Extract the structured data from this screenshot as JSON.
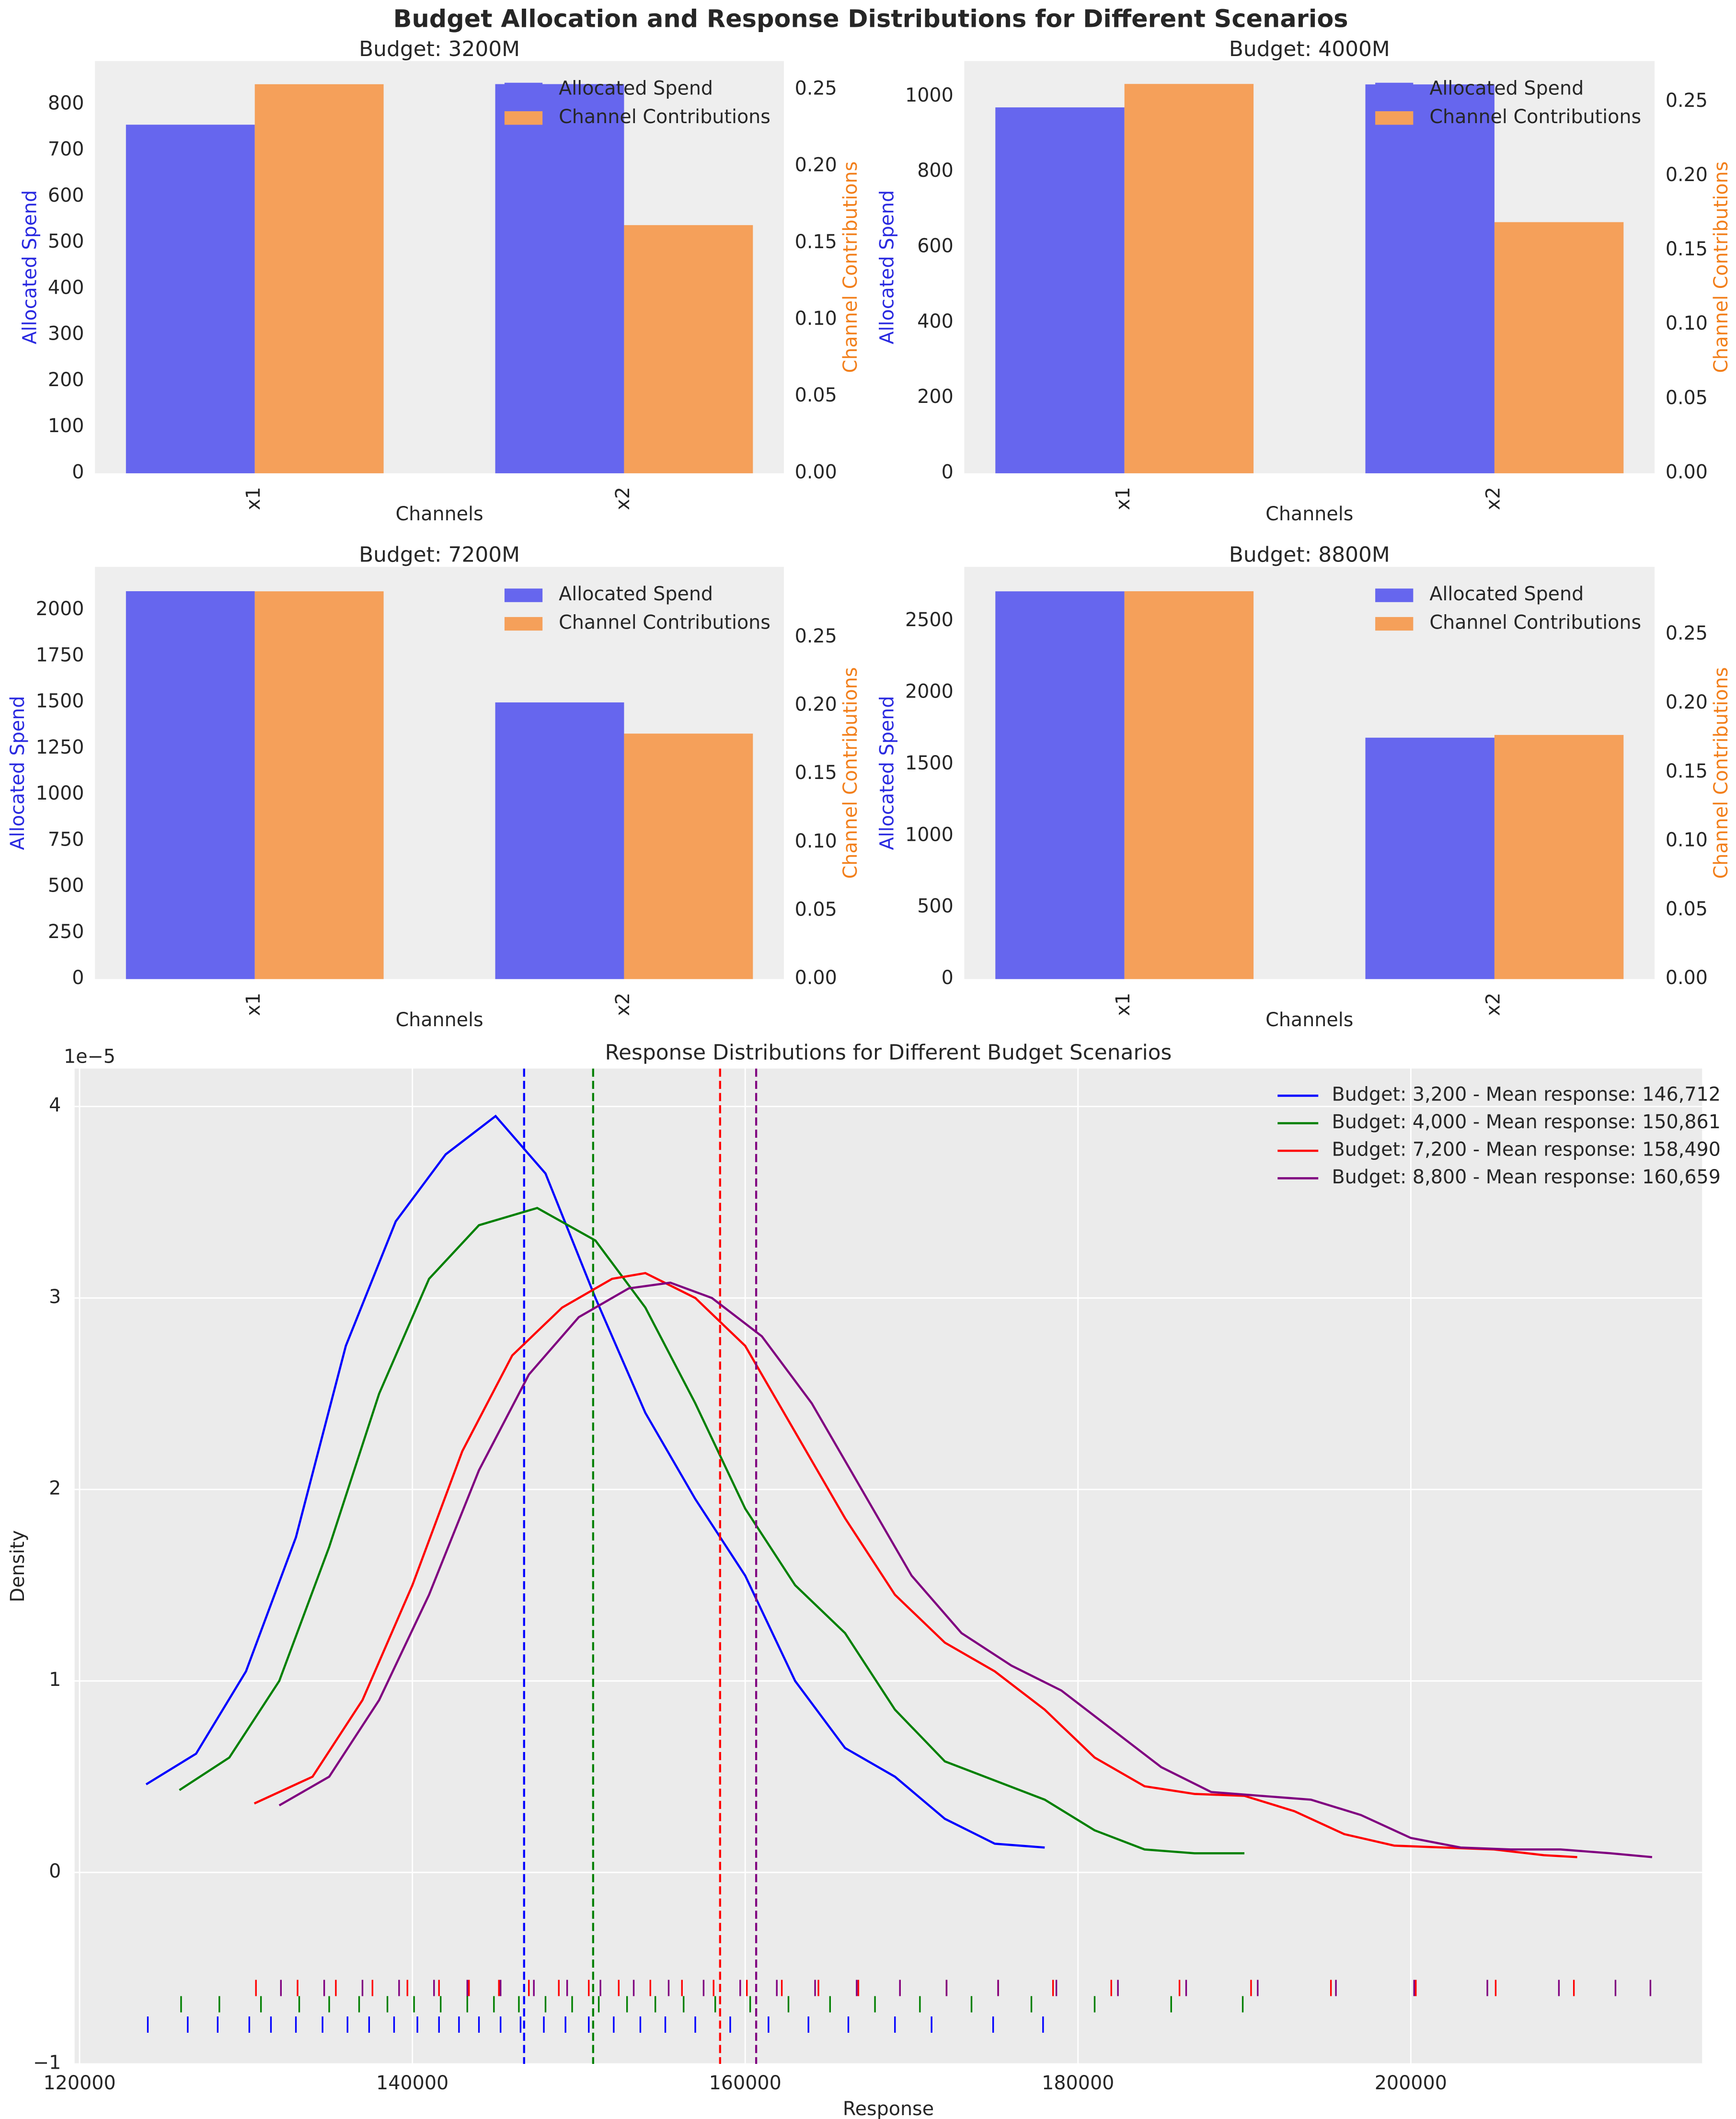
{
  "title": "Budget Allocation and Response Distributions for Different Scenarios",
  "chart_data": [
    {
      "type": "bar",
      "title": "Budget: 3200M",
      "categories": [
        "x1",
        "x2"
      ],
      "xlabel": "Channels",
      "ylabel": "Allocated Spend",
      "ylabel_color": "#2a2ae0",
      "y2label": "Channel Contributions",
      "y2label_color": "#f27f1b",
      "series": [
        {
          "name": "Allocated Spend",
          "color": "#6666ee",
          "values": [
            756,
            844
          ]
        },
        {
          "name": "Channel Contributions",
          "color": "#f5a05a",
          "axis": "y2",
          "values": [
            0.2535,
            0.1617
          ]
        }
      ],
      "ylim": [
        0,
        894
      ],
      "yticks": [
        0,
        100,
        200,
        300,
        400,
        500,
        600,
        700,
        800
      ],
      "y2lim": [
        0,
        0.2686
      ],
      "y2ticks": [
        {
          "value": 0,
          "label": "0.00"
        },
        {
          "value": 0.05,
          "label": "0.05"
        },
        {
          "value": 0.1,
          "label": "0.10"
        },
        {
          "value": 0.15,
          "label": "0.15"
        },
        {
          "value": 0.2,
          "label": "0.20"
        },
        {
          "value": 0.25,
          "label": "0.25"
        }
      ],
      "legend": "upper right"
    },
    {
      "type": "bar",
      "title": "Budget: 4000M",
      "categories": [
        "x1",
        "x2"
      ],
      "xlabel": "Channels",
      "ylabel": "Allocated Spend",
      "ylabel_color": "#2a2ae0",
      "y2label": "Channel Contributions",
      "y2label_color": "#f27f1b",
      "series": [
        {
          "name": "Allocated Spend",
          "color": "#6666ee",
          "values": [
            971,
            1032
          ]
        },
        {
          "name": "Channel Contributions",
          "color": "#f5a05a",
          "axis": "y2",
          "values": [
            0.262,
            0.169
          ]
        }
      ],
      "ylim": [
        0,
        1094
      ],
      "yticks": [
        0,
        200,
        400,
        600,
        800,
        1000
      ],
      "y2lim": [
        0,
        0.2774
      ],
      "y2ticks": [
        {
          "value": 0,
          "label": "0.00"
        },
        {
          "value": 0.05,
          "label": "0.05"
        },
        {
          "value": 0.1,
          "label": "0.10"
        },
        {
          "value": 0.15,
          "label": "0.15"
        },
        {
          "value": 0.2,
          "label": "0.20"
        },
        {
          "value": 0.25,
          "label": "0.25"
        }
      ],
      "legend": "upper right"
    },
    {
      "type": "bar",
      "title": "Budget: 7200M",
      "categories": [
        "x1",
        "x2"
      ],
      "xlabel": "Channels",
      "ylabel": "Allocated Spend",
      "ylabel_color": "#2a2ae0",
      "y2label": "Channel Contributions",
      "y2label_color": "#f27f1b",
      "series": [
        {
          "name": "Allocated Spend",
          "color": "#6666ee",
          "values": [
            2103,
            1500
          ]
        },
        {
          "name": "Channel Contributions",
          "color": "#f5a05a",
          "axis": "y2",
          "values": [
            0.2837,
            0.1796
          ]
        }
      ],
      "ylim": [
        0,
        2235
      ],
      "yticks": [
        0,
        250,
        500,
        750,
        1000,
        1250,
        1500,
        1750,
        2000
      ],
      "y2lim": [
        0,
        0.3016
      ],
      "y2ticks": [
        {
          "value": 0,
          "label": "0.00"
        },
        {
          "value": 0.05,
          "label": "0.05"
        },
        {
          "value": 0.1,
          "label": "0.10"
        },
        {
          "value": 0.15,
          "label": "0.15"
        },
        {
          "value": 0.2,
          "label": "0.20"
        },
        {
          "value": 0.25,
          "label": "0.25"
        }
      ],
      "legend": "upper right"
    },
    {
      "type": "bar",
      "title": "Budget: 8800M",
      "categories": [
        "x1",
        "x2"
      ],
      "xlabel": "Channels",
      "ylabel": "Allocated Spend",
      "ylabel_color": "#2a2ae0",
      "y2label": "Channel Contributions",
      "y2label_color": "#f27f1b",
      "series": [
        {
          "name": "Allocated Spend",
          "color": "#6666ee",
          "values": [
            2708,
            1686
          ]
        },
        {
          "name": "Channel Contributions",
          "color": "#f5a05a",
          "axis": "y2",
          "values": [
            0.2815,
            0.1772
          ]
        }
      ],
      "ylim": [
        0,
        2879
      ],
      "yticks": [
        0,
        500,
        1000,
        1500,
        2000,
        2500
      ],
      "y2lim": [
        0,
        0.2992
      ],
      "y2ticks": [
        {
          "value": 0,
          "label": "0.00"
        },
        {
          "value": 0.05,
          "label": "0.05"
        },
        {
          "value": 0.1,
          "label": "0.10"
        },
        {
          "value": 0.15,
          "label": "0.15"
        },
        {
          "value": 0.2,
          "label": "0.20"
        },
        {
          "value": 0.25,
          "label": "0.25"
        }
      ],
      "legend": "upper right"
    },
    {
      "type": "kde",
      "title": "Response Distributions for Different Budget Scenarios",
      "xlabel": "Response",
      "ylabel": "Density",
      "y_offset_label": "1e−5",
      "grid": true,
      "legend": "upper right",
      "xlim": [
        119700,
        217505
      ],
      "xticks": [
        120000,
        140000,
        160000,
        180000,
        200000
      ],
      "ylim": [
        -1,
        4.198
      ],
      "yticks": [
        {
          "value": -1,
          "label": "−1"
        },
        0,
        1,
        2,
        3,
        4
      ],
      "series": [
        {
          "name": "Budget: 3,200 - Mean response: 146,712",
          "color": "#0000ff",
          "mean": 146712,
          "x": [
            124000,
            127000,
            130000,
            133000,
            136000,
            139000,
            142000,
            145000,
            148000,
            151000,
            154000,
            157000,
            160000,
            163000,
            166000,
            169000,
            172000,
            175000,
            178000
          ],
          "values": [
            0.46,
            0.62,
            1.05,
            1.75,
            2.75,
            3.4,
            3.75,
            3.95,
            3.65,
            3.0,
            2.4,
            1.95,
            1.55,
            1.0,
            0.65,
            0.5,
            0.28,
            0.15,
            0.13
          ],
          "rug": [
            124100,
            126500,
            128300,
            130200,
            131500,
            133000,
            134600,
            136100,
            137400,
            138900,
            140300,
            141600,
            142800,
            144000,
            145300,
            146500,
            147900,
            149200,
            150600,
            152100,
            153700,
            155200,
            157000,
            159100,
            161400,
            163800,
            166200,
            169000,
            171200,
            174900,
            177900
          ]
        },
        {
          "name": "Budget: 4,000 - Mean response: 150,861",
          "color": "#008000",
          "mean": 150861,
          "x": [
            126000,
            129000,
            132000,
            135000,
            138000,
            141000,
            144000,
            147500,
            151000,
            154000,
            157000,
            160000,
            163000,
            166000,
            169000,
            172000,
            175000,
            178000,
            181000,
            184000,
            187000,
            190000
          ],
          "values": [
            0.43,
            0.6,
            1.0,
            1.7,
            2.5,
            3.1,
            3.38,
            3.47,
            3.3,
            2.95,
            2.45,
            1.9,
            1.5,
            1.25,
            0.85,
            0.58,
            0.48,
            0.38,
            0.22,
            0.12,
            0.1,
            0.1
          ],
          "rug": [
            126100,
            128400,
            130900,
            133200,
            135000,
            136800,
            138500,
            140100,
            141700,
            143300,
            144900,
            146400,
            148000,
            149600,
            151200,
            152900,
            154600,
            156300,
            158200,
            160300,
            162600,
            165100,
            167800,
            170500,
            173600,
            177200,
            181000,
            185600,
            189900
          ]
        },
        {
          "name": "Budget: 7,200 - Mean response: 158,490",
          "color": "#ff0000",
          "mean": 158490,
          "x": [
            130500,
            134000,
            137000,
            140000,
            143000,
            146000,
            149000,
            152000,
            154000,
            157000,
            160000,
            163000,
            166000,
            169000,
            172000,
            175000,
            178000,
            181000,
            184000,
            187000,
            190000,
            193000,
            196000,
            199000,
            202000,
            205000,
            208000,
            210000
          ],
          "values": [
            0.36,
            0.5,
            0.9,
            1.5,
            2.2,
            2.7,
            2.95,
            3.1,
            3.13,
            3.0,
            2.75,
            2.3,
            1.85,
            1.45,
            1.2,
            1.05,
            0.85,
            0.6,
            0.45,
            0.41,
            0.4,
            0.32,
            0.2,
            0.14,
            0.13,
            0.12,
            0.09,
            0.08
          ],
          "rug": [
            130600,
            133100,
            135400,
            137600,
            139700,
            141600,
            143400,
            145200,
            147000,
            148800,
            150600,
            152400,
            154300,
            156200,
            158100,
            160100,
            162200,
            164400,
            166800,
            169300,
            172100,
            175200,
            178500,
            182000,
            186100,
            190400,
            195200,
            200300,
            205100,
            209800
          ]
        },
        {
          "name": "Budget: 8,800 - Mean response: 160,659",
          "color": "#800080",
          "mean": 160659,
          "x": [
            132000,
            135000,
            138000,
            141000,
            144000,
            147000,
            150000,
            153000,
            155500,
            158000,
            161000,
            164000,
            167000,
            170000,
            173000,
            176000,
            179000,
            182000,
            185000,
            188000,
            191000,
            194000,
            197000,
            200000,
            203000,
            206000,
            209000,
            212000,
            214500
          ],
          "values": [
            0.35,
            0.5,
            0.9,
            1.45,
            2.1,
            2.6,
            2.9,
            3.05,
            3.08,
            3.0,
            2.8,
            2.45,
            2.0,
            1.55,
            1.25,
            1.08,
            0.95,
            0.75,
            0.55,
            0.42,
            0.4,
            0.38,
            0.3,
            0.18,
            0.13,
            0.12,
            0.12,
            0.1,
            0.08
          ],
          "rug": [
            132100,
            134700,
            137000,
            139200,
            141300,
            143300,
            145300,
            147300,
            149300,
            151300,
            153300,
            155400,
            157500,
            159700,
            161900,
            164200,
            166700,
            169300,
            172100,
            175200,
            178700,
            182400,
            186500,
            190800,
            195500,
            200200,
            204600,
            208900,
            212300,
            214400
          ]
        }
      ]
    }
  ]
}
